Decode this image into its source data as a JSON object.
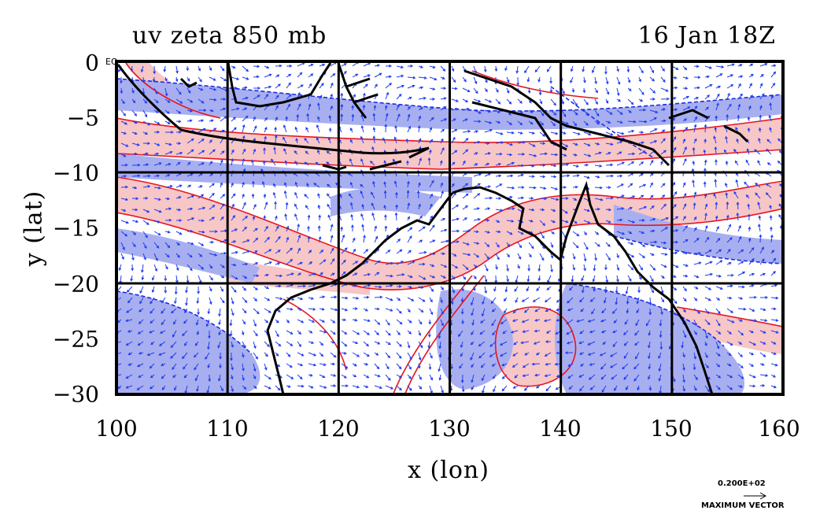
{
  "title_left": "uv zeta 850 mb",
  "title_right": "16 Jan 18Z",
  "xlabel": "x (lon)",
  "ylabel": "y (lat)",
  "x_ticks": [
    "100",
    "110",
    "120",
    "130",
    "140",
    "150",
    "160"
  ],
  "y_ticks": [
    "0",
    "−5",
    "−10",
    "−15",
    "−20",
    "−25",
    "−30"
  ],
  "equator_label": "EQ",
  "vector_legend": {
    "value": "0.200E+02",
    "label": "MAXIMUM VECTOR"
  },
  "colors": {
    "positive_fill": "#f7c6c6",
    "negative_fill": "#a8aff0",
    "positive_contour": "#e8141e",
    "negative_contour": "#1a2be0",
    "vector": "#1f3cf0",
    "coast": "#000000"
  },
  "map_extent": {
    "lon": [
      100,
      160
    ],
    "lat": [
      -30,
      0
    ]
  },
  "gridlines_lon": [
    110,
    120,
    130,
    140,
    150
  ],
  "gridlines_lat": [
    -10,
    -20
  ]
}
